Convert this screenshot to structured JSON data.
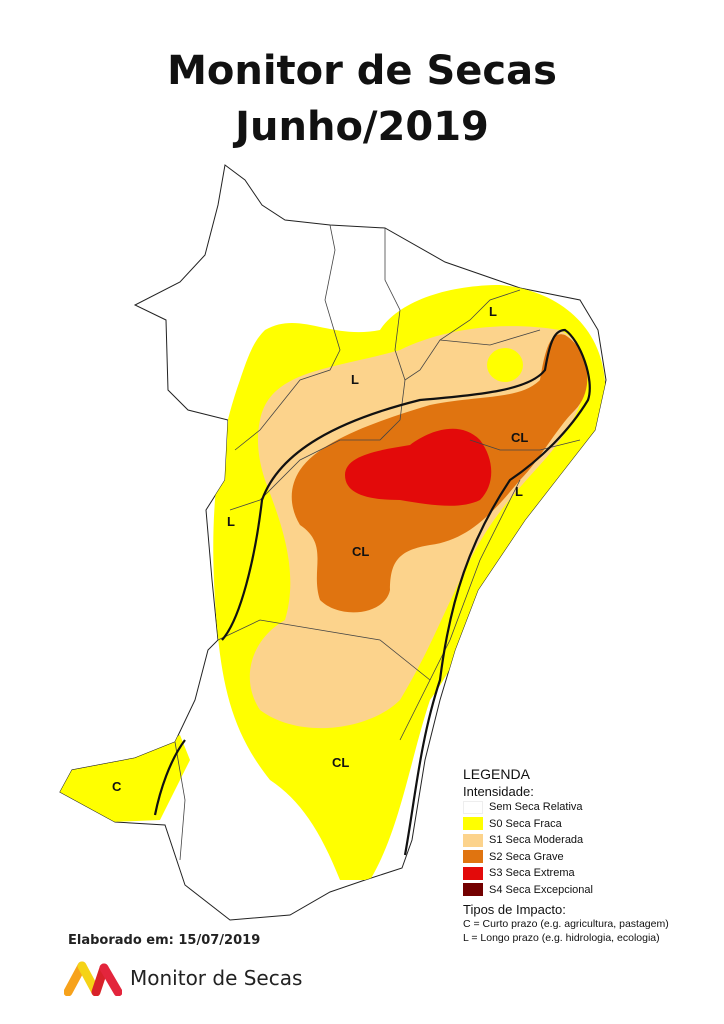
{
  "header": {
    "title": "Monitor de Secas",
    "subtitle": "Junho/2019"
  },
  "map_labels": [
    {
      "text": "L",
      "region": "north-east"
    },
    {
      "text": "L",
      "region": "north"
    },
    {
      "text": "CL",
      "region": "east"
    },
    {
      "text": "L",
      "region": "east-coast"
    },
    {
      "text": "L",
      "region": "west"
    },
    {
      "text": "CL",
      "region": "center"
    },
    {
      "text": "CL",
      "region": "south"
    },
    {
      "text": "C",
      "region": "south-west"
    }
  ],
  "legend": {
    "title": "LEGENDA",
    "intensity_label": "Intensidade:",
    "items": [
      {
        "label": "Sem Seca Relativa",
        "color": "#ffffff"
      },
      {
        "label": "S0 Seca Fraca",
        "color": "#ffff00"
      },
      {
        "label": "S1 Seca Moderada",
        "color": "#fcd38c"
      },
      {
        "label": "S2 Seca Grave",
        "color": "#e07410"
      },
      {
        "label": "S3 Seca Extrema",
        "color": "#e30a0a"
      },
      {
        "label": "S4 Seca Excepcional",
        "color": "#730000"
      }
    ],
    "impact_label": "Tipos de Impacto:",
    "impacts": [
      "C = Curto prazo (e.g. agricultura, pastagem)",
      "L = Longo prazo (e.g. hidrologia, ecologia)"
    ]
  },
  "footer": {
    "date": "Elaborado em: 15/07/2019",
    "logo_text": "Monitor de Secas"
  }
}
